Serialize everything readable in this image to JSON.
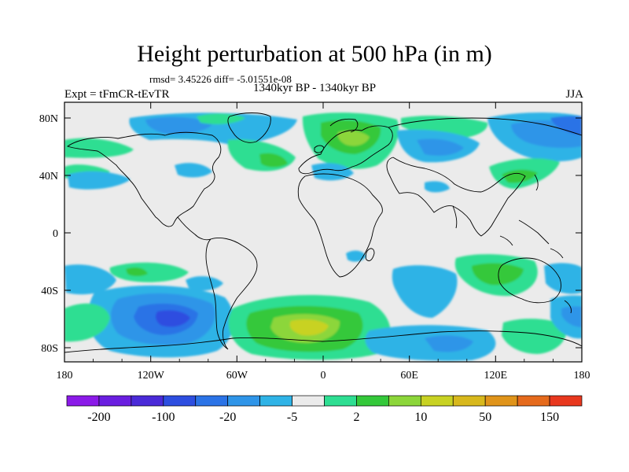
{
  "header": {
    "title": "Height perturbation at 500 hPa (in m)",
    "stats": "rmsd= 3.45226 diff= -5.01551e-08",
    "experiment": "Expt = tFmCR-tEvTR",
    "period": "1340kyr BP - 1340kyr BP",
    "season": "JJA"
  },
  "axes": {
    "lat_labels": [
      "80N",
      "40N",
      "0",
      "40S",
      "80S"
    ],
    "lon_labels": [
      "180",
      "120W",
      "60W",
      "0",
      "60E",
      "120E",
      "180"
    ]
  },
  "colorbar": {
    "colors": [
      "#8b1ae8",
      "#6a1ee0",
      "#4a2ad8",
      "#2d4ee0",
      "#2b73e6",
      "#2f95e8",
      "#2fb3e6",
      "#ebebeb",
      "#2ede92",
      "#34c83a",
      "#8cd63a",
      "#c8d223",
      "#d8b81c",
      "#e0941a",
      "#e56a1c",
      "#e8381e"
    ],
    "labels": [
      "-200",
      "-100",
      "-20",
      "-5",
      "2",
      "10",
      "50",
      "150"
    ]
  }
}
